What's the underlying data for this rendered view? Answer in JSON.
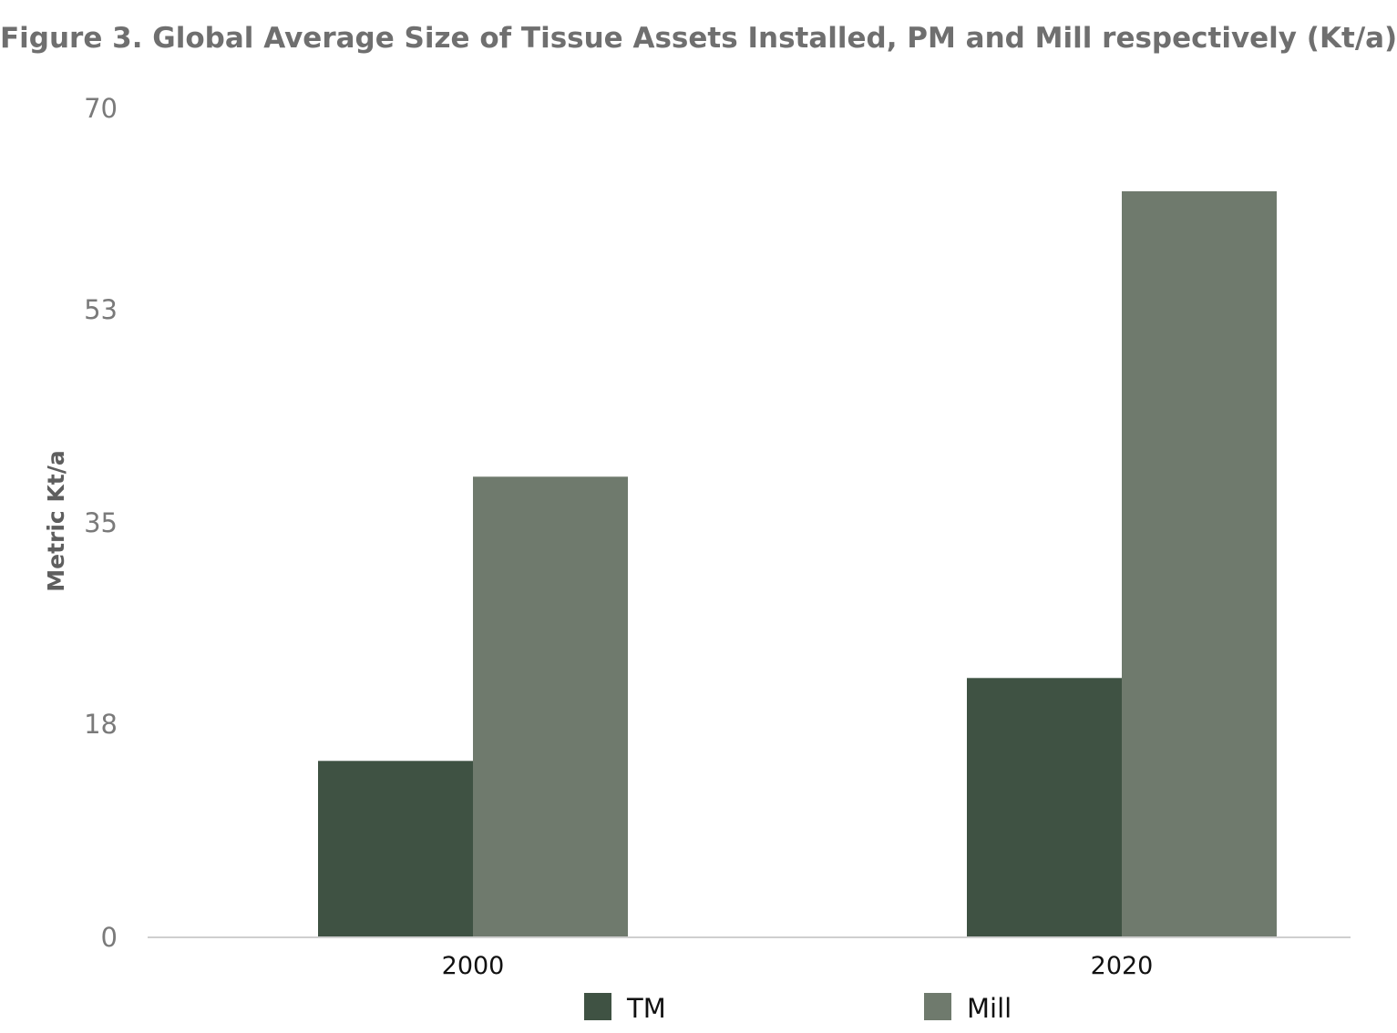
{
  "chart_data": {
    "type": "bar",
    "title": "Figure 3. Global Average Size of Tissue Assets Installed, PM and Mill respectively (Kt/a)",
    "xlabel": "",
    "ylabel": "Metric Kt/a",
    "categories": [
      "2000",
      "2020"
    ],
    "series": [
      {
        "name": "TM",
        "values": [
          14.9,
          21.9
        ],
        "color": "#3f5243"
      },
      {
        "name": "Mill",
        "values": [
          38.9,
          63.0
        ],
        "color": "#6f7a6d"
      }
    ],
    "ylim": [
      0,
      70
    ],
    "yticks": [
      "0",
      "18",
      "35",
      "53",
      "70"
    ],
    "grid": false,
    "legend_position": "bottom"
  }
}
